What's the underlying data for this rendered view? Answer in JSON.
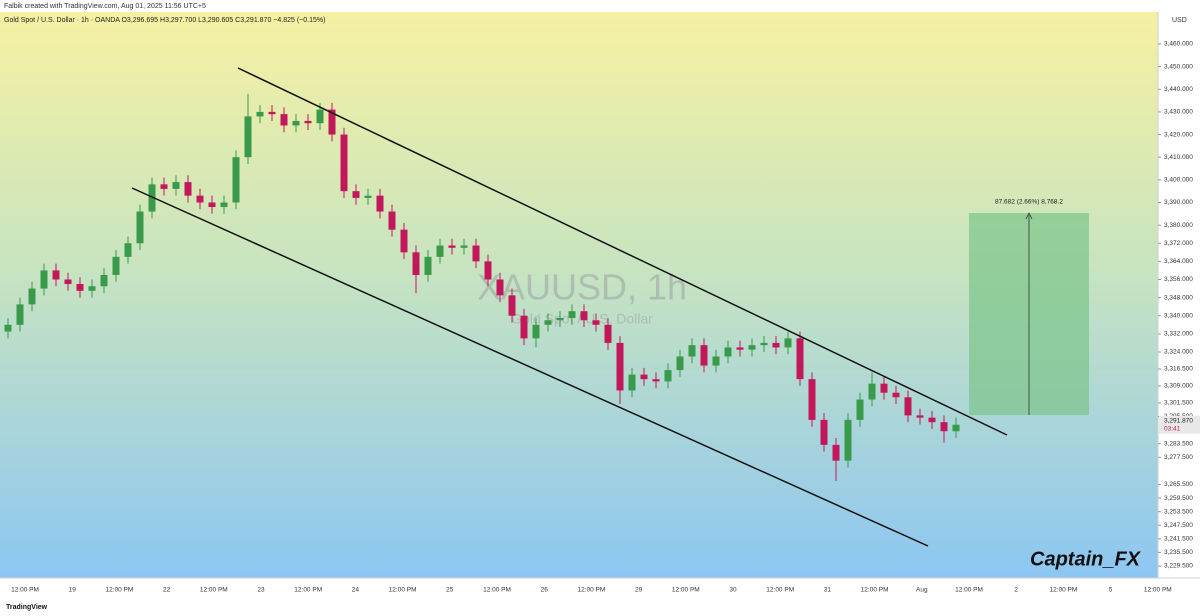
{
  "header": {
    "credit": "Falbik created with TradingView.com, Aug 01, 2025 11:56 UTC+5",
    "legend": "Gold Spot / U.S. Dollar · 1h · OANDA  O3,296.695 H3,297.700 L3,290.605 C3,291.870 −4.825 (−0.15%)"
  },
  "footer": {
    "brand": "TradingView"
  },
  "chart_data": {
    "type": "candlestick",
    "watermark": "XAUUSD, 1h",
    "watermark_subtitle": "Gold Spot / U.S. Dollar",
    "currency": "USD",
    "signature": "Captain_FX",
    "position_label": "87.682 (2.66%) 8,768.2",
    "current_price": {
      "label": "3,291.870",
      "countdown": "03:41"
    },
    "up_color": "#3a9a4c",
    "down_color": "#c2185b",
    "categories": [
      "12:00 PM",
      "19",
      "12:00 PM",
      "22",
      "12:00 PM",
      "23",
      "12:00 PM",
      "24",
      "12:00 PM",
      "25",
      "12:00 PM",
      "26",
      "12:00 PM",
      "29",
      "12:00 PM",
      "30",
      "12:00 PM",
      "31",
      "12:00 PM",
      "Aug",
      "12:00 PM",
      "2",
      "12:00 PM",
      "5",
      "12:00 PM"
    ],
    "open": [
      3333,
      3336,
      3345,
      3352,
      3360,
      3356,
      3354,
      3351,
      3353,
      3358,
      3366,
      3372,
      3386,
      3398,
      3396,
      3399,
      3393,
      3390,
      3388,
      3390,
      3410,
      3428,
      3430,
      3429,
      3424,
      3426,
      3425,
      3431,
      3420,
      3395,
      3392,
      3393,
      3386,
      3378,
      3368,
      3358,
      3366,
      3371,
      3370,
      3371,
      3364,
      3356,
      3349,
      3340,
      3330,
      3336,
      3338,
      3339,
      3342,
      3338,
      3336,
      3328,
      3307,
      3314,
      3312,
      3311,
      3316,
      3322,
      3327,
      3318,
      3322,
      3326,
      3325,
      3327,
      3328,
      3326,
      3330,
      3312,
      3294,
      3283,
      3276,
      3294,
      3303,
      3310,
      3306,
      3304,
      3296,
      3295,
      3293,
      3289
    ],
    "high": [
      3339,
      3348,
      3355,
      3363,
      3363,
      3359,
      3357,
      3356,
      3361,
      3369,
      3375,
      3389,
      3401,
      3401,
      3402,
      3402,
      3396,
      3393,
      3393,
      3413,
      3438,
      3433,
      3433,
      3432,
      3429,
      3429,
      3434,
      3434,
      3423,
      3398,
      3396,
      3396,
      3389,
      3381,
      3371,
      3369,
      3374,
      3374,
      3374,
      3374,
      3367,
      3359,
      3352,
      3343,
      3339,
      3341,
      3342,
      3345,
      3345,
      3341,
      3339,
      3331,
      3317,
      3317,
      3315,
      3319,
      3325,
      3330,
      3330,
      3325,
      3329,
      3329,
      3330,
      3331,
      3331,
      3333,
      3333,
      3315,
      3297,
      3286,
      3297,
      3306,
      3315,
      3313,
      3309,
      3307,
      3299,
      3298,
      3296,
      3295
    ],
    "low": [
      3330,
      3333,
      3342,
      3349,
      3353,
      3351,
      3348,
      3348,
      3350,
      3355,
      3363,
      3369,
      3383,
      3393,
      3393,
      3390,
      3387,
      3385,
      3385,
      3387,
      3407,
      3425,
      3426,
      3421,
      3421,
      3422,
      3422,
      3417,
      3392,
      3389,
      3389,
      3383,
      3375,
      3365,
      3350,
      3355,
      3363,
      3367,
      3367,
      3361,
      3353,
      3346,
      3337,
      3327,
      3326,
      3333,
      3335,
      3336,
      3335,
      3333,
      3325,
      3301,
      3304,
      3309,
      3308,
      3308,
      3313,
      3319,
      3315,
      3315,
      3319,
      3322,
      3322,
      3324,
      3323,
      3323,
      3309,
      3291,
      3280,
      3267,
      3273,
      3291,
      3300,
      3303,
      3301,
      3293,
      3292,
      3290,
      3284,
      3286
    ],
    "close": [
      3336,
      3345,
      3352,
      3360,
      3356,
      3354,
      3351,
      3353,
      3358,
      3366,
      3372,
      3386,
      3398,
      3396,
      3399,
      3393,
      3390,
      3388,
      3390,
      3410,
      3428,
      3430,
      3429,
      3424,
      3426,
      3425,
      3431,
      3420,
      3395,
      3392,
      3393,
      3386,
      3378,
      3368,
      3358,
      3366,
      3371,
      3370,
      3371,
      3364,
      3356,
      3349,
      3340,
      3330,
      3336,
      3338,
      3339,
      3342,
      3338,
      3336,
      3328,
      3307,
      3314,
      3312,
      3311,
      3316,
      3322,
      3327,
      3318,
      3322,
      3326,
      3325,
      3327,
      3328,
      3326,
      3330,
      3312,
      3294,
      3283,
      3276,
      3294,
      3303,
      3310,
      3306,
      3304,
      3296,
      3295,
      3293,
      3289,
      3291.87
    ],
    "ylim": [
      3224.2,
      3474.1
    ],
    "yticks": [
      {
        "value": 3460,
        "label": "3,460.000"
      },
      {
        "value": 3450,
        "label": "3,450.000"
      },
      {
        "value": 3440,
        "label": "3,440.000"
      },
      {
        "value": 3430,
        "label": "3,430.000"
      },
      {
        "value": 3420,
        "label": "3,420.000"
      },
      {
        "value": 3410,
        "label": "3,410.000"
      },
      {
        "value": 3400,
        "label": "3,400.000"
      },
      {
        "value": 3390,
        "label": "3,390.000"
      },
      {
        "value": 3380,
        "label": "3,380.000"
      },
      {
        "value": 3372,
        "label": "3,372.000"
      },
      {
        "value": 3364,
        "label": "3,364.000"
      },
      {
        "value": 3356,
        "label": "3,356.000"
      },
      {
        "value": 3348,
        "label": "3,348.000"
      },
      {
        "value": 3340,
        "label": "3,340.000"
      },
      {
        "value": 3332,
        "label": "3,332.000"
      },
      {
        "value": 3324,
        "label": "3,324.000"
      },
      {
        "value": 3316.5,
        "label": "3,316.500"
      },
      {
        "value": 3309,
        "label": "3,309.000"
      },
      {
        "value": 3301.5,
        "label": "3,301.500"
      },
      {
        "value": 3295.5,
        "label": "3,295.500"
      },
      {
        "value": 3283.5,
        "label": "3,283.500"
      },
      {
        "value": 3277.5,
        "label": "3,277.500"
      },
      {
        "value": 3265.5,
        "label": "3,265.500"
      },
      {
        "value": 3259.5,
        "label": "3,259.500"
      },
      {
        "value": 3253.5,
        "label": "3,253.500"
      },
      {
        "value": 3247.5,
        "label": "3,247.500"
      },
      {
        "value": 3241.5,
        "label": "3,241.500"
      },
      {
        "value": 3235.5,
        "label": "3,235.500"
      },
      {
        "value": 3229.5,
        "label": "3,229.500"
      }
    ]
  }
}
